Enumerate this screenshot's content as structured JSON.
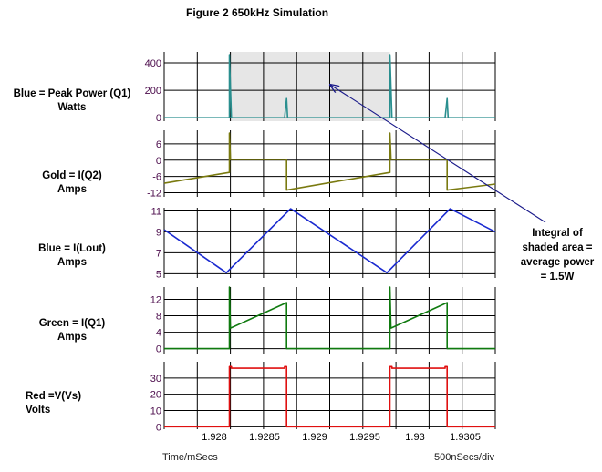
{
  "title": "Figure 2 650kHz Simulation",
  "labels": [
    {
      "line1": "Blue = Peak Power (Q1)",
      "line2": "Watts"
    },
    {
      "line1": "Gold = I(Q2)",
      "line2": "Amps"
    },
    {
      "line1": "Blue = I(Lout)",
      "line2": "Amps"
    },
    {
      "line1": "Green = I(Q1)",
      "line2": "Amps"
    },
    {
      "line1": "Red =V(Vs)",
      "line2": "Volts"
    }
  ],
  "annotation": {
    "line1": "Integral of",
    "line2": "shaded area =",
    "line3": "average power",
    "line4": "= 1.5W"
  },
  "footer": {
    "x_unit": "Time/mSecs",
    "timebase": "500nSecs/div"
  },
  "colors": {
    "grid": "#000000",
    "axis_label": "#4a0a4a",
    "shade": "#e6e6e6",
    "arrow": "#1a1a8a",
    "power": "#2a8f8f",
    "iq2": "#7a7a10",
    "ilout": "#1a2ad0",
    "iq1": "#0f7a0f",
    "vs": "#e01010"
  },
  "chart_data": [
    {
      "type": "line",
      "ylabel": "Watts",
      "y_ticks": [
        0,
        200,
        400
      ],
      "y_tick_labels": [
        "0",
        "200",
        "400"
      ],
      "ylim": [
        -25,
        480
      ],
      "xlim": [
        1.9275,
        1.9308
      ],
      "shaded_region": [
        1.92815,
        1.92975
      ],
      "series": [
        {
          "name": "Blue = Peak Power (Q1)",
          "x": [
            1.9275,
            1.9281,
            1.92815,
            1.92815,
            1.92817,
            1.9282,
            1.92815,
            1.9287,
            1.92872,
            1.92873,
            1.92875,
            1.9297,
            1.92975,
            1.92975,
            1.92977,
            1.9298,
            1.9303,
            1.93032,
            1.93033,
            1.93035,
            1.9308
          ],
          "y": [
            0,
            0,
            0,
            460,
            0,
            0,
            0,
            0,
            140,
            0,
            0,
            0,
            0,
            460,
            0,
            0,
            0,
            140,
            0,
            0,
            0
          ]
        }
      ]
    },
    {
      "type": "line",
      "ylabel": "Amps",
      "y_ticks": [
        -12,
        -6,
        0,
        6
      ],
      "y_tick_labels": [
        "-12",
        "-6",
        "0",
        "6"
      ],
      "ylim": [
        -13.5,
        11
      ],
      "xlim": [
        1.9275,
        1.9308
      ],
      "series": [
        {
          "name": "Gold = I(Q2)",
          "x": [
            1.9275,
            1.92815,
            1.92815,
            1.92816,
            1.92816,
            1.92872,
            1.92872,
            1.92975,
            1.92975,
            1.92976,
            1.92976,
            1.93032,
            1.93032,
            1.9308
          ],
          "y": [
            -8.5,
            -4.5,
            10,
            1,
            0.3,
            0.3,
            -11,
            -4.5,
            10,
            1,
            0.3,
            0.3,
            -11,
            -8.8
          ]
        }
      ]
    },
    {
      "type": "line",
      "ylabel": "Amps",
      "y_ticks": [
        5,
        7,
        9,
        11
      ],
      "y_tick_labels": [
        "5",
        "7",
        "9",
        "11"
      ],
      "ylim": [
        4.6,
        11.3
      ],
      "xlim": [
        1.9275,
        1.9308
      ],
      "series": [
        {
          "name": "Blue = I(Lout)",
          "x": [
            1.9275,
            1.92812,
            1.92876,
            1.92972,
            1.93035,
            1.9308
          ],
          "y": [
            9.2,
            5.1,
            11.2,
            5.1,
            11.2,
            9.0
          ]
        }
      ]
    },
    {
      "type": "line",
      "ylabel": "Amps",
      "y_ticks": [
        0,
        4,
        8,
        12
      ],
      "y_tick_labels": [
        "0",
        "4",
        "8",
        "12"
      ],
      "ylim": [
        -1.2,
        15
      ],
      "xlim": [
        1.9275,
        1.9308
      ],
      "series": [
        {
          "name": "Green = I(Q1)",
          "x": [
            1.9275,
            1.92815,
            1.92815,
            1.92816,
            1.92816,
            1.92872,
            1.92872,
            1.92975,
            1.92975,
            1.92976,
            1.92976,
            1.93032,
            1.93032,
            1.9308
          ],
          "y": [
            0,
            0,
            15,
            5,
            5,
            11.2,
            0,
            0,
            15,
            5,
            5,
            11.2,
            0,
            0
          ]
        }
      ]
    },
    {
      "type": "line",
      "ylabel": "Volts",
      "xlabel": "Time/mSecs",
      "y_ticks": [
        0,
        10,
        20,
        30
      ],
      "y_tick_labels": [
        "0",
        "10",
        "20",
        "30"
      ],
      "ylim": [
        -1.5,
        40
      ],
      "xlim": [
        1.9275,
        1.9308
      ],
      "x_ticks": [
        1.928,
        1.9285,
        1.929,
        1.9295,
        1.93,
        1.9305
      ],
      "x_tick_labels": [
        "1.928",
        "1.9285",
        "1.929",
        "1.9295",
        "1.93",
        "1.9305"
      ],
      "series": [
        {
          "name": "Red =V(Vs)",
          "x": [
            1.9275,
            1.92815,
            1.92815,
            1.92817,
            1.92817,
            1.9287,
            1.9287,
            1.92872,
            1.92872,
            1.92975,
            1.92975,
            1.92977,
            1.92977,
            1.9303,
            1.9303,
            1.93032,
            1.93032,
            1.9308
          ],
          "y": [
            0,
            0,
            37,
            37,
            36,
            36,
            37,
            37,
            0,
            0,
            37,
            37,
            36,
            36,
            37,
            37,
            0,
            0
          ]
        }
      ]
    }
  ]
}
